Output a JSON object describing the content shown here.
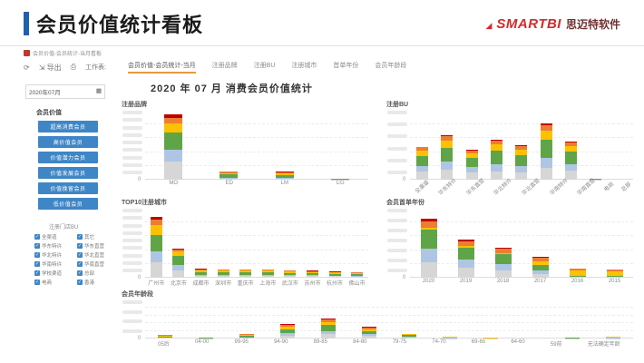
{
  "header": {
    "title": "会员价值统计看板",
    "logo_brand": "SMARTBI",
    "logo_company": "思迈特软件",
    "accent_blue": "#1e62ab",
    "brand_red": "#d22b2b"
  },
  "breadcrumb": {
    "label": "会员价值-会员统计-当月看板"
  },
  "toolbar": {
    "refresh_icon": "refresh",
    "export_label": "导出",
    "print_icon": "print",
    "worksheet_label": "工作表:",
    "active_tab_color": "#e89a3c",
    "tabs": [
      {
        "label": "会员价值-会员统计-当月",
        "active": true
      },
      {
        "label": "注册品牌",
        "active": false
      },
      {
        "label": "注册BU",
        "active": false
      },
      {
        "label": "注册城市",
        "active": false
      },
      {
        "label": "首单年份",
        "active": false
      },
      {
        "label": "会员年龄段",
        "active": false
      }
    ]
  },
  "sidebar": {
    "date_filter": {
      "value": "2020年07月"
    },
    "member_value": {
      "title": "会员价值",
      "button_color": "#3e86c6",
      "buttons": [
        "超高消费会员",
        "高价值会员",
        "价值潜力会员",
        "价值发展会员",
        "价值挽留会员",
        "低价值会员"
      ]
    },
    "bu_filter": {
      "title": "注册门店BU",
      "options": [
        "全渠道",
        "其它",
        "华东特许",
        "华东直营",
        "华北特许",
        "华北直营",
        "华南特许",
        "华南直营",
        "学校渠道",
        "总部",
        "电商",
        "香港"
      ],
      "all_checked": true
    }
  },
  "main": {
    "title": "2020 年 07 月 消费会员价值统计"
  },
  "palette": {
    "segment_colors": [
      "#d6d6d6",
      "#aec6e4",
      "#5fa548",
      "#fdc101",
      "#ed7d31",
      "#c00000"
    ],
    "segment_names": [
      "低价值会员",
      "价值挽留会员",
      "价值发展会员",
      "价值潜力会员",
      "高价值会员",
      "超高消费会员"
    ]
  },
  "chart_data": [
    {
      "type": "bar",
      "stacked": true,
      "title": "注册品牌",
      "value_units": "relative_height_pct",
      "y_zero_label": "0",
      "y_axis_labels_illegible": true,
      "grid": true,
      "legend": "none",
      "categories": [
        "MO",
        "ED",
        "LM",
        "CG"
      ],
      "series": [
        {
          "name": "低价值会员",
          "values": [
            26,
            1.5,
            1.5,
            0.4
          ]
        },
        {
          "name": "价值挽留会员",
          "values": [
            18,
            1,
            1,
            0.2
          ]
        },
        {
          "name": "价值发展会员",
          "values": [
            25,
            5,
            4.5,
            0.4
          ]
        },
        {
          "name": "价值潜力会员",
          "values": [
            12,
            2,
            2,
            0.2
          ]
        },
        {
          "name": "高价值会员",
          "values": [
            9,
            2,
            2,
            0.2
          ]
        },
        {
          "name": "超高消费会员",
          "values": [
            5,
            0.5,
            0.5,
            0.1
          ]
        }
      ]
    },
    {
      "type": "bar",
      "stacked": true,
      "title": "注册BU",
      "value_units": "relative_height_pct",
      "y_zero_label": "0",
      "y_axis_labels_illegible": true,
      "grid": true,
      "legend": "none",
      "categories": [
        "全渠道",
        "华东特许",
        "华东直营",
        "华北特许",
        "华北直营",
        "华南特许",
        "华南直营",
        "电商",
        "总部"
      ],
      "series": [
        {
          "name": "低价值会员",
          "values": [
            12,
            14,
            10,
            12,
            11,
            17,
            13,
            0.3,
            0.1
          ]
        },
        {
          "name": "价值挽留会员",
          "values": [
            8,
            12,
            8,
            11,
            9,
            15,
            10,
            0.2,
            0.1
          ]
        },
        {
          "name": "价值发展会员",
          "values": [
            14,
            20,
            13,
            19,
            16,
            26,
            18,
            0.5,
            0.1
          ]
        },
        {
          "name": "价值潜力会员",
          "values": [
            8,
            11,
            7,
            9,
            8,
            13,
            8,
            0.4,
            0.1
          ]
        },
        {
          "name": "高价值会员",
          "values": [
            5,
            6,
            4,
            5,
            5,
            8,
            5,
            0.4,
            0.1
          ]
        },
        {
          "name": "超高消费会员",
          "values": [
            1,
            2,
            1,
            2,
            1,
            3,
            1,
            0.2,
            0.1
          ]
        }
      ]
    },
    {
      "type": "bar",
      "stacked": true,
      "title": "TOP10注册城市",
      "value_units": "relative_height_pct",
      "y_zero_label": "0",
      "y_axis_labels_illegible": true,
      "grid": true,
      "legend": "none",
      "categories": [
        "广州市",
        "北京市",
        "成都市",
        "深圳市",
        "重庆市",
        "上海市",
        "武汉市",
        "苏州市",
        "杭州市",
        "佛山市"
      ],
      "series": [
        {
          "name": "低价值会员",
          "values": [
            22,
            10,
            3,
            2.8,
            2.8,
            2.8,
            2.5,
            2.3,
            2,
            1.8
          ]
        },
        {
          "name": "价值挽留会员",
          "values": [
            16,
            8,
            1.5,
            1.4,
            1.4,
            1.4,
            1.3,
            1.2,
            1,
            0.9
          ]
        },
        {
          "name": "价值发展会员",
          "values": [
            24,
            13,
            4,
            3.7,
            3.7,
            3.7,
            3.4,
            3.1,
            2.8,
            2.5
          ]
        },
        {
          "name": "价值潜力会员",
          "values": [
            14,
            7,
            2.5,
            2.3,
            2.3,
            2.3,
            2.1,
            1.9,
            1.7,
            1.5
          ]
        },
        {
          "name": "高价值会员",
          "values": [
            8,
            3,
            1.5,
            1.4,
            1.4,
            1.4,
            1.3,
            1.2,
            1,
            0.9
          ]
        },
        {
          "name": "超高消费会员",
          "values": [
            4,
            1,
            0.5,
            0.4,
            0.4,
            0.4,
            0.4,
            0.3,
            0.3,
            0.4
          ]
        }
      ]
    },
    {
      "type": "bar",
      "stacked": true,
      "title": "会员首单年份",
      "value_units": "relative_height_pct",
      "y_zero_label": "0",
      "y_axis_labels_illegible": true,
      "grid": true,
      "legend": "none",
      "categories": [
        "2020",
        "2019",
        "2018",
        "2017",
        "2016",
        "2015"
      ],
      "series": [
        {
          "name": "低价值会员",
          "values": [
            22,
            14,
            10,
            5,
            1,
            1
          ]
        },
        {
          "name": "价值挽留会员",
          "values": [
            20,
            12,
            10,
            5,
            1,
            0.5
          ]
        },
        {
          "name": "价值发展会员",
          "values": [
            28,
            18,
            14,
            8,
            1,
            1
          ]
        },
        {
          "name": "价值潜力会员",
          "values": [
            2,
            2,
            2,
            6,
            8,
            7
          ]
        },
        {
          "name": "高价值会员",
          "values": [
            10,
            7,
            6,
            5,
            2,
            2
          ]
        },
        {
          "name": "超高消费会员",
          "values": [
            3,
            2,
            2,
            1,
            0.5,
            0.5
          ]
        }
      ]
    },
    {
      "type": "bar",
      "stacked": true,
      "title": "会员年龄段",
      "value_units": "relative_height_pct",
      "y_zero_label": "0",
      "y_axis_labels_illegible": true,
      "grid": true,
      "legend": "none",
      "categories": [
        "05后",
        "04-00",
        "99-95",
        "94-90",
        "89-85",
        "84-80",
        "79-75",
        "74-70",
        "69-65",
        "64-60",
        "59前",
        "无法确定年龄"
      ],
      "series": [
        {
          "name": "低价值会员",
          "values": [
            2,
            0.5,
            2,
            8,
            11,
            6,
            3,
            1,
            0.4,
            0.1,
            0.6,
            1
          ]
        },
        {
          "name": "价值挽留会员",
          "values": [
            1,
            0.3,
            1.5,
            7,
            9,
            5,
            2,
            0.8,
            0.3,
            0.1,
            0.4,
            0.8
          ]
        },
        {
          "name": "价值发展会员",
          "values": [
            3,
            0.5,
            4,
            10,
            15,
            9,
            4,
            1.5,
            0.5,
            0.1,
            0.8,
            1.4
          ]
        },
        {
          "name": "价值潜力会员",
          "values": [
            2,
            0.3,
            2,
            6,
            9,
            5,
            2,
            1,
            0.4,
            0.1,
            0.6,
            1
          ]
        },
        {
          "name": "高价值会员",
          "values": [
            1.5,
            0.3,
            2,
            5,
            6,
            4,
            1.5,
            0.5,
            0.3,
            0.1,
            0.4,
            0.6
          ]
        },
        {
          "name": "超高消费会员",
          "values": [
            0.5,
            0.1,
            0.5,
            2,
            2,
            1,
            0.5,
            0.2,
            0.1,
            0.1,
            0.2,
            0.2
          ]
        }
      ]
    }
  ]
}
